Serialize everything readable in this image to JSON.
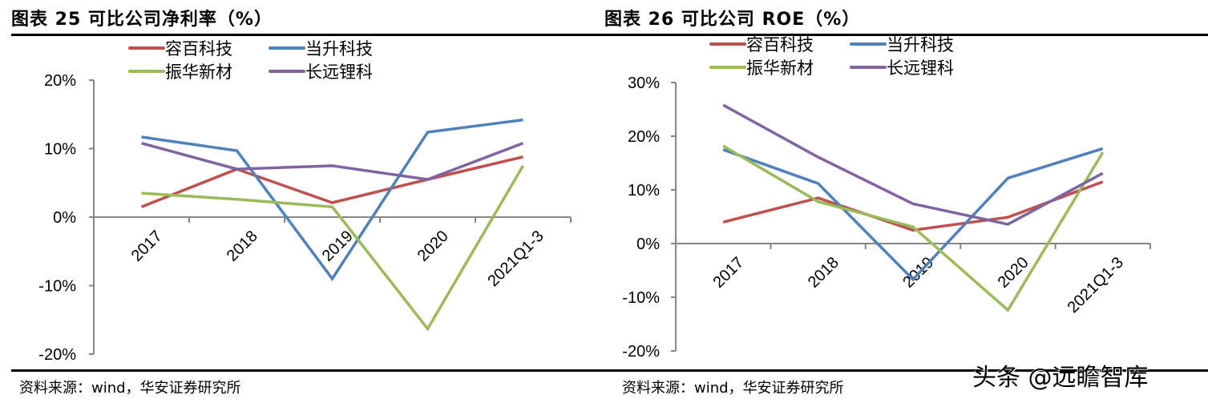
{
  "panels": [
    {
      "title": "图表 25 可比公司净利率（%）",
      "source": "资料来源：wind，华安证券研究所"
    },
    {
      "title": "图表 26 可比公司 ROE（%）",
      "source": "资料来源：wind，华安证券研究所"
    }
  ],
  "watermark": "头条 @远瞻智库",
  "chart_data": [
    {
      "type": "line",
      "title": "图表 25 可比公司净利率（%）",
      "xlabel": "",
      "ylabel": "",
      "categories": [
        "2017",
        "2018",
        "2019",
        "2020",
        "2021Q1-3"
      ],
      "ylim": [
        -20,
        20
      ],
      "yticks": [
        -20,
        -10,
        0,
        10,
        20
      ],
      "ytick_labels": [
        "-20%",
        "-10%",
        "0%",
        "10%",
        "20%"
      ],
      "grid": false,
      "legend_position": "top",
      "series": [
        {
          "name": "容百科技",
          "color": "#C0504D",
          "values": [
            1.5,
            7.0,
            2.1,
            5.5,
            8.8
          ]
        },
        {
          "name": "当升科技",
          "color": "#4F81BD",
          "values": [
            11.7,
            9.7,
            -9.0,
            12.4,
            14.2
          ]
        },
        {
          "name": "振华新材",
          "color": "#9BBB59",
          "values": [
            3.5,
            2.6,
            1.5,
            -16.3,
            7.5
          ]
        },
        {
          "name": "长远锂科",
          "color": "#8064A2",
          "values": [
            10.8,
            7.0,
            7.5,
            5.5,
            10.8
          ]
        }
      ]
    },
    {
      "type": "line",
      "title": "图表 26 可比公司 ROE（%）",
      "xlabel": "",
      "ylabel": "",
      "categories": [
        "2017",
        "2018",
        "2019",
        "2020",
        "2021Q1-3"
      ],
      "ylim": [
        -20,
        30
      ],
      "yticks": [
        -20,
        -10,
        0,
        10,
        20,
        30
      ],
      "ytick_labels": [
        "-20%",
        "-10%",
        "0%",
        "10%",
        "20%",
        "30%"
      ],
      "grid": false,
      "legend_position": "top",
      "series": [
        {
          "name": "容百科技",
          "color": "#C0504D",
          "values": [
            4.0,
            8.5,
            2.5,
            4.9,
            11.5
          ]
        },
        {
          "name": "当升科技",
          "color": "#4F81BD",
          "values": [
            17.5,
            11.2,
            -6.7,
            12.2,
            17.7
          ]
        },
        {
          "name": "振华新材",
          "color": "#9BBB59",
          "values": [
            18.2,
            7.8,
            3.1,
            -12.4,
            17.0
          ]
        },
        {
          "name": "长远锂科",
          "color": "#8064A2",
          "values": [
            25.8,
            16.1,
            7.4,
            3.6,
            13.1
          ]
        }
      ]
    }
  ]
}
